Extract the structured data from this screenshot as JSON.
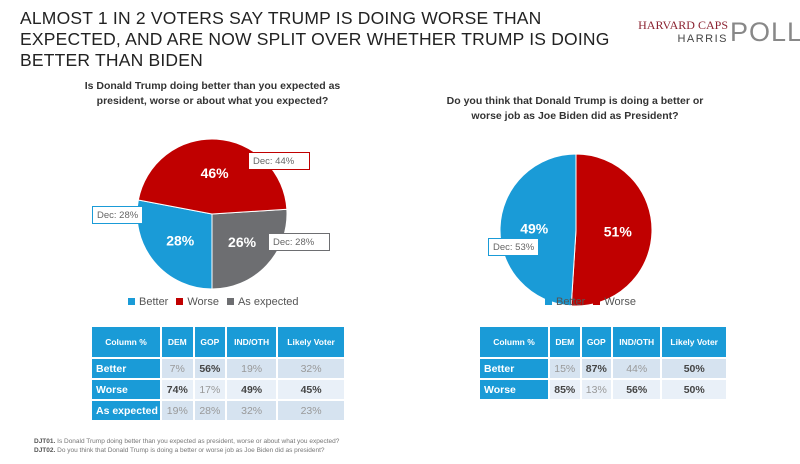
{
  "title": "ALMOST 1 IN 2 VOTERS SAY TRUMP IS DOING WORSE THAN EXPECTED, AND ARE NOW SPLIT OVER WHETHER TRUMP IS DOING BETTER THAN BIDEN",
  "logo": {
    "line1": "HARVARD CAPS",
    "line2": "HARRIS",
    "line3": "POLL"
  },
  "colors": {
    "Better": "#1a9bd7",
    "Worse": "#c00000",
    "As expected": "#6d6e71"
  },
  "chart_data": [
    {
      "type": "pie",
      "title": "Is Donald Trump doing better than you expected as president, worse or about what you expected?",
      "slices": [
        {
          "label": "Better",
          "value": 28,
          "data_label": "28%",
          "callout": "Dec: 28%"
        },
        {
          "label": "Worse",
          "value": 46,
          "data_label": "46%",
          "callout": "Dec: 44%"
        },
        {
          "label": "As expected",
          "value": 26,
          "data_label": "26%",
          "callout": "Dec: 28%"
        }
      ],
      "legend": "bottom",
      "table": {
        "headers": [
          "Column %",
          "DEM",
          "GOP",
          "IND/OTH",
          "Likely Voter"
        ],
        "rows": [
          {
            "label": "Better",
            "values": [
              "7%",
              "56%",
              "19%",
              "32%"
            ],
            "bold": [
              false,
              true,
              false,
              false
            ]
          },
          {
            "label": "Worse",
            "values": [
              "74%",
              "17%",
              "49%",
              "45%"
            ],
            "bold": [
              true,
              false,
              true,
              true
            ]
          },
          {
            "label": "As expected",
            "values": [
              "19%",
              "28%",
              "32%",
              "23%"
            ],
            "bold": [
              false,
              false,
              false,
              false
            ]
          }
        ]
      }
    },
    {
      "type": "pie",
      "title": "Do you think that Donald Trump is doing a better or worse job as Joe Biden did as President?",
      "slices": [
        {
          "label": "Better",
          "value": 49,
          "data_label": "49%",
          "callout": "Dec: 53%"
        },
        {
          "label": "Worse",
          "value": 51,
          "data_label": "51%"
        }
      ],
      "legend": "bottom",
      "table": {
        "headers": [
          "Column %",
          "DEM",
          "GOP",
          "IND/OTH",
          "Likely Voter"
        ],
        "rows": [
          {
            "label": "Better",
            "values": [
              "15%",
              "87%",
              "44%",
              "50%"
            ],
            "bold": [
              false,
              true,
              false,
              true
            ]
          },
          {
            "label": "Worse",
            "values": [
              "85%",
              "13%",
              "56%",
              "50%"
            ],
            "bold": [
              true,
              false,
              true,
              true
            ]
          }
        ]
      }
    }
  ],
  "footnotes": [
    {
      "code": "DJT01.",
      "text": "Is Donald Trump doing better than you expected as president, worse or about what you expected?"
    },
    {
      "code": "DJT02.",
      "text": "Do you think that Donald Trump is doing a better or worse job as Joe Biden did as president?"
    }
  ]
}
